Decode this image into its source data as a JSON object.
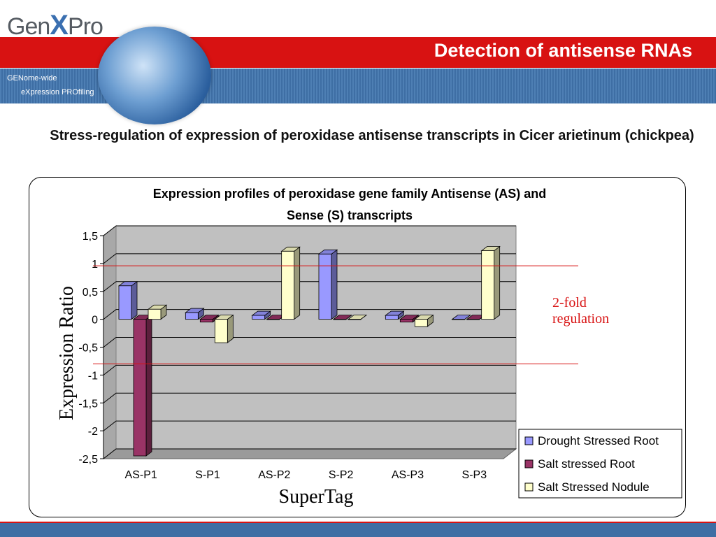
{
  "header": {
    "logo_part1": "Gen",
    "logo_part2": "X",
    "logo_part3": "Pro",
    "title": "Detection of antisense RNAs",
    "tagline_line1": "GENome-wide",
    "tagline_line2": "eXpression PROfiling"
  },
  "slide": {
    "subtitle": "Stress-regulation of expression of peroxidase antisense transcripts in Cicer arietinum (chickpea)"
  },
  "colors": {
    "red_band": "#d81212",
    "blue_band": "#3e6ea4",
    "drought": "#9999ff",
    "salt_root": "#993366",
    "salt_nodule": "#ffffcc",
    "annotation": "#d81212"
  },
  "chart_data": {
    "type": "bar",
    "title_line1": "Expression profiles of peroxidase gene family Antisense (AS) and",
    "title_line2": "Sense (S) transcripts",
    "xlabel": "SuperTag",
    "ylabel": "Expression Ratio",
    "categories": [
      "AS-P1",
      "S-P1",
      "AS-P2",
      "S-P2",
      "AS-P3",
      "S-P3"
    ],
    "ylim": [
      -2.5,
      1.5
    ],
    "yticks": [
      1.5,
      1,
      0.5,
      0,
      -0.5,
      -1,
      -1.5,
      -2,
      -2.5
    ],
    "ytick_labels": [
      "1,5",
      "1",
      "0,5",
      "0",
      "-0,5",
      "-1",
      "-1,5",
      "-2",
      "-2,5"
    ],
    "series": [
      {
        "name": "Drought Stressed Root",
        "color": "#9999ff",
        "values": [
          0.6,
          0.12,
          0.07,
          1.17,
          0.07,
          0.0
        ]
      },
      {
        "name": "Salt stressed Root",
        "color": "#993366",
        "values": [
          -2.45,
          -0.05,
          0.0,
          0.0,
          -0.05,
          0.0
        ]
      },
      {
        "name": "Salt Stressed Nodule",
        "color": "#ffffcc",
        "values": [
          0.18,
          -0.42,
          1.22,
          0.0,
          -0.13,
          1.23
        ]
      }
    ],
    "legend_position": "bottom-right",
    "grid": true,
    "reference_lines": [
      0.96,
      -0.8
    ],
    "annotation": "2-fold regulation",
    "annotation_line1": "2-fold",
    "annotation_line2": "regulation"
  }
}
